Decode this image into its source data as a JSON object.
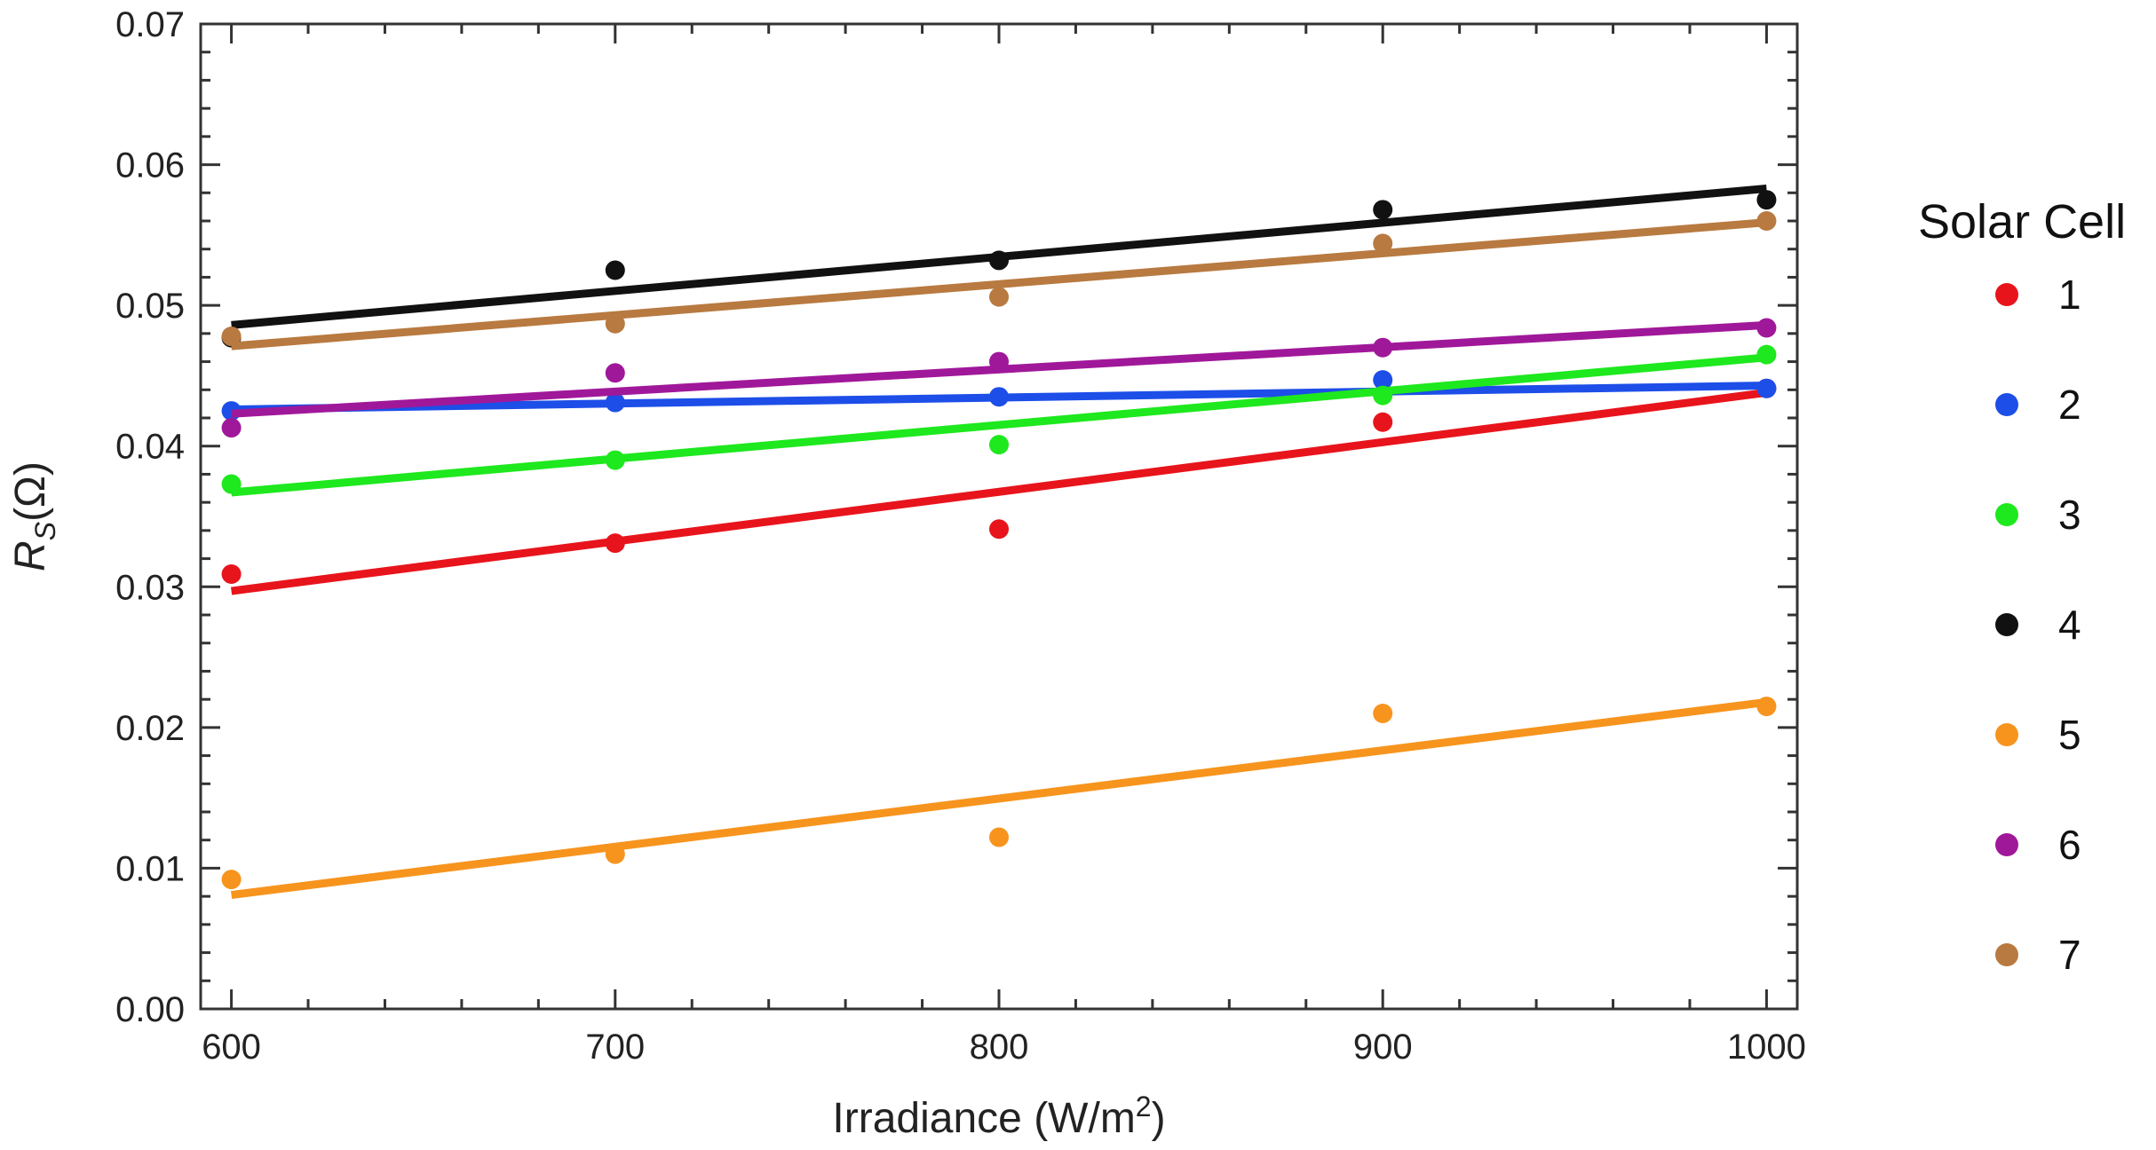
{
  "chart_data": {
    "type": "scatter",
    "title": "",
    "xlabel": {
      "text": "Irradiance (W/m",
      "sup": "2",
      "suffix": ")"
    },
    "ylabel": {
      "base": "R",
      "sub": "S",
      "suffix": "(Ω)"
    },
    "xlim": [
      592,
      1008
    ],
    "ylim": [
      0,
      0.07
    ],
    "xticks": [
      600,
      700,
      800,
      900,
      1000
    ],
    "xtick_labels": [
      "600",
      "700",
      "800",
      "900",
      "1000"
    ],
    "yticks": [
      0,
      0.01,
      0.02,
      0.03,
      0.04,
      0.05,
      0.06,
      0.07
    ],
    "ytick_labels": [
      "0.00",
      "0.01",
      "0.02",
      "0.03",
      "0.04",
      "0.05",
      "0.06",
      "0.07"
    ],
    "grid": false,
    "legend": {
      "title": "Solar Cell",
      "position": "right"
    },
    "x": [
      600,
      700,
      800,
      900,
      1000
    ],
    "series": [
      {
        "name": "1",
        "color": "#e8141c",
        "values": [
          0.0309,
          0.0331,
          0.0341,
          0.0417,
          0.0441
        ],
        "fit": [
          0.0297,
          0.0438
        ]
      },
      {
        "name": "2",
        "color": "#1d4ee8",
        "values": [
          0.0425,
          0.0431,
          0.0435,
          0.0447,
          0.0441
        ],
        "fit": [
          0.0426,
          0.0443
        ]
      },
      {
        "name": "3",
        "color": "#1ee81e",
        "values": [
          0.0373,
          0.039,
          0.0401,
          0.0436,
          0.0465
        ],
        "fit": [
          0.0367,
          0.0463
        ]
      },
      {
        "name": "4",
        "color": "#111111",
        "values": [
          0.0477,
          0.0525,
          0.0532,
          0.0568,
          0.0575
        ],
        "fit": [
          0.0486,
          0.0583
        ]
      },
      {
        "name": "5",
        "color": "#f7941e",
        "values": [
          0.0092,
          0.011,
          0.0122,
          0.021,
          0.0215
        ],
        "fit": [
          0.0081,
          0.0218
        ]
      },
      {
        "name": "6",
        "color": "#a0189a",
        "values": [
          0.0413,
          0.0452,
          0.046,
          0.047,
          0.0484
        ],
        "fit": [
          0.0423,
          0.0486
        ]
      },
      {
        "name": "7",
        "color": "#b87a40",
        "values": [
          0.0478,
          0.0487,
          0.0506,
          0.0544,
          0.056
        ],
        "fit": [
          0.0471,
          0.0559
        ]
      }
    ]
  }
}
